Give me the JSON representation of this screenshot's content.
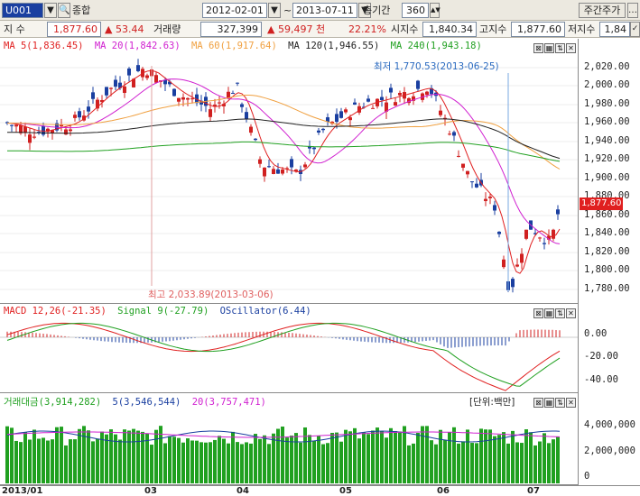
{
  "toolbar": {
    "code": "U001",
    "name": "종합",
    "date_from": "2012-02-01",
    "date_to": "2013-07-11",
    "period_label": "총기간",
    "period_value": "360",
    "view_button": "주간주가"
  },
  "info": {
    "index_label": "지 수",
    "index_value": "1,877.60",
    "change": "▲ 53.44",
    "volume_label": "거래량",
    "volume_value": "327,399",
    "volume_change": "▲ 59,497 천",
    "volume_pct": "22.21%",
    "open_label": "시지수",
    "open_value": "1,840.34",
    "high_label": "고지수",
    "high_value": "1,877.60",
    "low_label": "저지수",
    "low_value": "1,84"
  },
  "colors": {
    "up": "#d02020",
    "down": "#1a3fa0",
    "ma5": "#e02020",
    "ma20": "#d020d0",
    "ma60": "#f0a040",
    "ma120": "#222222",
    "ma240": "#20a020",
    "macd": "#e02020",
    "signal": "#20a020",
    "osc": "#1a3fa0",
    "vol": "#20a020"
  },
  "price_pane": {
    "legend": [
      {
        "label": "MA 5(1,836.45)",
        "color": "#e02020"
      },
      {
        "label": "MA 20(1,842.63)",
        "color": "#d020d0"
      },
      {
        "label": "MA 60(1,917.64)",
        "color": "#f0a040"
      },
      {
        "label": "MA 120(1,946.55)",
        "color": "#222222"
      },
      {
        "label": "MA 240(1,943.18)",
        "color": "#20a020"
      }
    ],
    "ticks": [
      "2,020.00",
      "2,000.00",
      "1,980.00",
      "1,960.00",
      "1,940.00",
      "1,920.00",
      "1,900.00",
      "1,880.00",
      "1,860.00",
      "1,840.00",
      "1,820.00",
      "1,800.00",
      "1,780.00"
    ],
    "current_price": "1,877.60",
    "low_annotation": "최저 1,770.53(2013-06-25)",
    "high_annotation": "최고 2,033.89(2013-03-06)"
  },
  "macd_pane": {
    "legend": [
      {
        "label": "MACD 12,26(-21.35)",
        "color": "#e02020"
      },
      {
        "label": "Signal 9(-27.79)",
        "color": "#20a020"
      },
      {
        "label": "OScillator(6.44)",
        "color": "#1a3fa0"
      }
    ],
    "ticks": [
      "0.00",
      "-20.00",
      "-40.00"
    ]
  },
  "volume_pane": {
    "legend": [
      {
        "label": "거래대금(3,914,282)",
        "color": "#20a020"
      },
      {
        "label": "5(3,546,544)",
        "color": "#1a3fa0"
      },
      {
        "label": "20(3,757,471)",
        "color": "#d020d0"
      }
    ],
    "unit": "[단위:백만]",
    "ticks": [
      "4,000,000",
      "2,000,000",
      "0"
    ]
  },
  "x_axis": [
    "2013/01",
    "03",
    "04",
    "05",
    "06",
    "07"
  ]
}
